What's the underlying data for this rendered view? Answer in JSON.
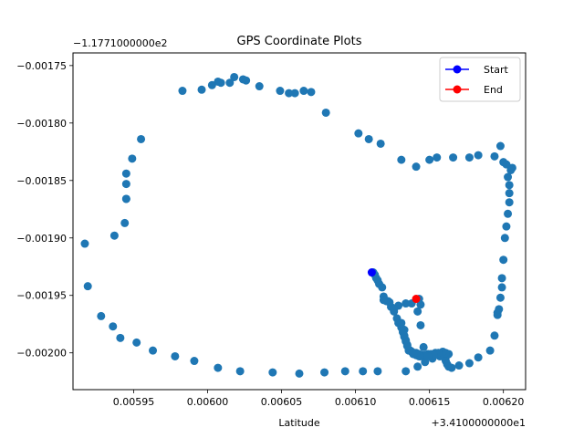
{
  "chart_data": {
    "type": "scatter",
    "title": "GPS Coordinate Plots",
    "xlabel": "Latitude",
    "ylabel": "",
    "x_offset_label": "+3.4100000000e1",
    "y_offset_label": "−1.1771000000e2",
    "x_offset": 34.1,
    "y_offset": -117.71,
    "xlim": [
      0.005909,
      0.006215
    ],
    "ylim": [
      -0.002032,
      -0.001739
    ],
    "x_ticks": [
      0.00595,
      0.006,
      0.00605,
      0.0061,
      0.00615,
      0.0062
    ],
    "x_tick_labels": [
      "0.00595",
      "0.00600",
      "0.00605",
      "0.00610",
      "0.00615",
      "0.00620"
    ],
    "y_ticks": [
      -0.00175,
      -0.0018,
      -0.00185,
      -0.0019,
      -0.00195,
      -0.002
    ],
    "y_tick_labels": [
      "−0.00175",
      "−0.00180",
      "−0.00185",
      "−0.00190",
      "−0.00195",
      "−0.00200"
    ],
    "grid": false,
    "legend_position": "top-right",
    "point_color": "#1f77b4",
    "start_color": "#0000ff",
    "end_color": "#ff0000",
    "series": [
      {
        "x": [
          0.006112,
          0.006113,
          0.006114,
          0.006115,
          0.006116,
          0.006118,
          0.006119,
          0.006121,
          0.006124,
          0.006126,
          0.006128,
          0.006129,
          0.006131,
          0.006132,
          0.006133,
          0.006134,
          0.006135,
          0.006137,
          0.006138,
          0.006139,
          0.00614,
          0.006141,
          0.006143,
          0.006144,
          0.006145,
          0.006147,
          0.006149,
          0.006151,
          0.006154,
          0.006157,
          0.00616,
          0.006161,
          0.006162,
          0.006163,
          0.006165,
          0.00617,
          0.006177,
          0.006183,
          0.006191,
          0.006194,
          0.006196,
          0.006196,
          0.006197,
          0.006198,
          0.006199,
          0.006199,
          0.0062,
          0.006201,
          0.006202,
          0.006203,
          0.006204,
          0.006204,
          0.006204,
          0.006203,
          0.006205,
          0.006206,
          0.006202,
          0.0062,
          0.006198,
          0.006194,
          0.006183,
          0.006177,
          0.006166,
          0.006155,
          0.00615,
          0.006141,
          0.006131,
          0.006117,
          0.006109,
          0.006102,
          0.00608,
          0.00607,
          0.006065,
          0.006059,
          0.006055,
          0.006049,
          0.006035,
          0.006026,
          0.006024,
          0.006018,
          0.006015,
          0.006009,
          0.006007,
          0.006003,
          0.005996,
          0.005983,
          0.005955,
          0.005949,
          0.005945,
          0.005945,
          0.005944,
          0.005937,
          0.005945,
          0.005945,
          0.005917,
          0.005919,
          0.005928,
          0.005936,
          0.005941,
          0.005952,
          0.005963,
          0.005978,
          0.005991,
          0.006007,
          0.006022,
          0.006044,
          0.006062,
          0.006079,
          0.006093,
          0.006105,
          0.006115,
          0.006134,
          0.006142,
          0.006147,
          0.006152,
          0.006157,
          0.006162,
          0.006163,
          0.006161,
          0.006159,
          0.006156,
          0.006153,
          0.006149,
          0.006146,
          0.006143,
          0.006141,
          0.006139,
          0.006138,
          0.006136,
          0.006135,
          0.006134,
          0.006133,
          0.006133,
          0.006131,
          0.006129,
          0.006126,
          0.006123,
          0.006122,
          0.006119,
          0.006138,
          0.006134,
          0.006144,
          0.006142,
          0.006144,
          0.006143
        ],
        "y": [
          -0.00193,
          -0.001932,
          -0.001935,
          -0.001937,
          -0.00194,
          -0.001943,
          -0.001951,
          -0.001955,
          -0.00196,
          -0.001964,
          -0.00197,
          -0.001974,
          -0.001978,
          -0.001982,
          -0.001986,
          -0.00199,
          -0.001993,
          -0.001998,
          -0.001999,
          -0.002,
          -0.002001,
          -0.002002,
          -0.002003,
          -0.002003,
          -0.002002,
          -0.002002,
          -0.002001,
          -0.002001,
          -0.002,
          -0.002002,
          -0.002004,
          -0.002007,
          -0.00201,
          -0.002012,
          -0.002013,
          -0.002011,
          -0.002009,
          -0.002004,
          -0.001998,
          -0.001985,
          -0.001967,
          -0.001965,
          -0.001962,
          -0.001952,
          -0.001943,
          -0.001935,
          -0.001919,
          -0.0019,
          -0.00189,
          -0.001879,
          -0.001869,
          -0.001861,
          -0.001854,
          -0.001847,
          -0.001841,
          -0.001839,
          -0.001836,
          -0.001834,
          -0.00182,
          -0.001829,
          -0.001828,
          -0.00183,
          -0.00183,
          -0.00183,
          -0.001832,
          -0.001838,
          -0.001832,
          -0.001818,
          -0.001814,
          -0.001809,
          -0.001791,
          -0.001773,
          -0.001772,
          -0.001774,
          -0.001774,
          -0.001772,
          -0.001768,
          -0.001763,
          -0.001762,
          -0.00176,
          -0.001765,
          -0.001765,
          -0.001764,
          -0.001767,
          -0.001771,
          -0.001772,
          -0.001814,
          -0.001831,
          -0.001844,
          -0.001866,
          -0.001887,
          -0.001898,
          -0.001853,
          -0.001866,
          -0.001905,
          -0.001942,
          -0.001968,
          -0.001977,
          -0.001987,
          -0.001991,
          -0.001998,
          -0.002003,
          -0.002007,
          -0.002013,
          -0.002016,
          -0.002017,
          -0.002018,
          -0.002017,
          -0.002016,
          -0.002016,
          -0.002016,
          -0.002016,
          -0.002012,
          -0.002008,
          -0.002005,
          -0.002003,
          -0.002002,
          -0.002001,
          -0.002,
          -0.001999,
          -0.002,
          -0.002002,
          -0.002003,
          -0.001995,
          -0.002001,
          -0.002,
          -0.002001,
          -0.001999,
          -0.001998,
          -0.001994,
          -0.001989,
          -0.001985,
          -0.00198,
          -0.001974,
          -0.001959,
          -0.001962,
          -0.001956,
          -0.001955,
          -0.001954,
          -0.001957,
          -0.001957,
          -0.001976,
          -0.001964,
          -0.001958,
          -0.001953
        ]
      }
    ],
    "start_point": {
      "x": 0.006111,
      "y": -0.00193
    },
    "end_point": {
      "x": 0.006141,
      "y": -0.001953
    },
    "legend": [
      {
        "name": "Start",
        "color": "#0000ff"
      },
      {
        "name": "End",
        "color": "#ff0000"
      }
    ]
  }
}
